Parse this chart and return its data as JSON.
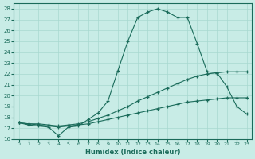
{
  "xlabel": "Humidex (Indice chaleur)",
  "xlim": [
    -0.5,
    23.5
  ],
  "ylim": [
    16,
    28.5
  ],
  "yticks": [
    16,
    17,
    18,
    19,
    20,
    21,
    22,
    23,
    24,
    25,
    26,
    27,
    28
  ],
  "xticks": [
    0,
    1,
    2,
    3,
    4,
    5,
    6,
    7,
    8,
    9,
    10,
    11,
    12,
    13,
    14,
    15,
    16,
    17,
    18,
    19,
    20,
    21,
    22,
    23
  ],
  "bg_color": "#c8ece6",
  "line_color": "#1a6b5a",
  "grid_color": "#a8d8d0",
  "line_max": [
    17.5,
    17.3,
    17.2,
    17.1,
    16.3,
    17.1,
    17.2,
    17.8,
    18.4,
    19.5,
    22.3,
    25.0,
    27.2,
    27.7,
    28.0,
    27.7,
    27.2,
    27.2,
    24.8,
    22.2,
    22.1,
    20.8,
    19.0,
    18.3
  ],
  "line_upper": [
    17.5,
    17.4,
    17.4,
    17.3,
    17.2,
    17.3,
    17.4,
    17.6,
    17.9,
    18.2,
    18.6,
    19.0,
    19.5,
    19.9,
    20.3,
    20.7,
    21.1,
    21.5,
    21.8,
    22.0,
    22.1,
    22.2,
    22.2,
    22.2
  ],
  "line_lower": [
    17.5,
    17.4,
    17.3,
    17.2,
    17.1,
    17.2,
    17.3,
    17.4,
    17.6,
    17.8,
    18.0,
    18.2,
    18.4,
    18.6,
    18.8,
    19.0,
    19.2,
    19.4,
    19.5,
    19.6,
    19.7,
    19.8,
    19.8,
    19.8
  ]
}
